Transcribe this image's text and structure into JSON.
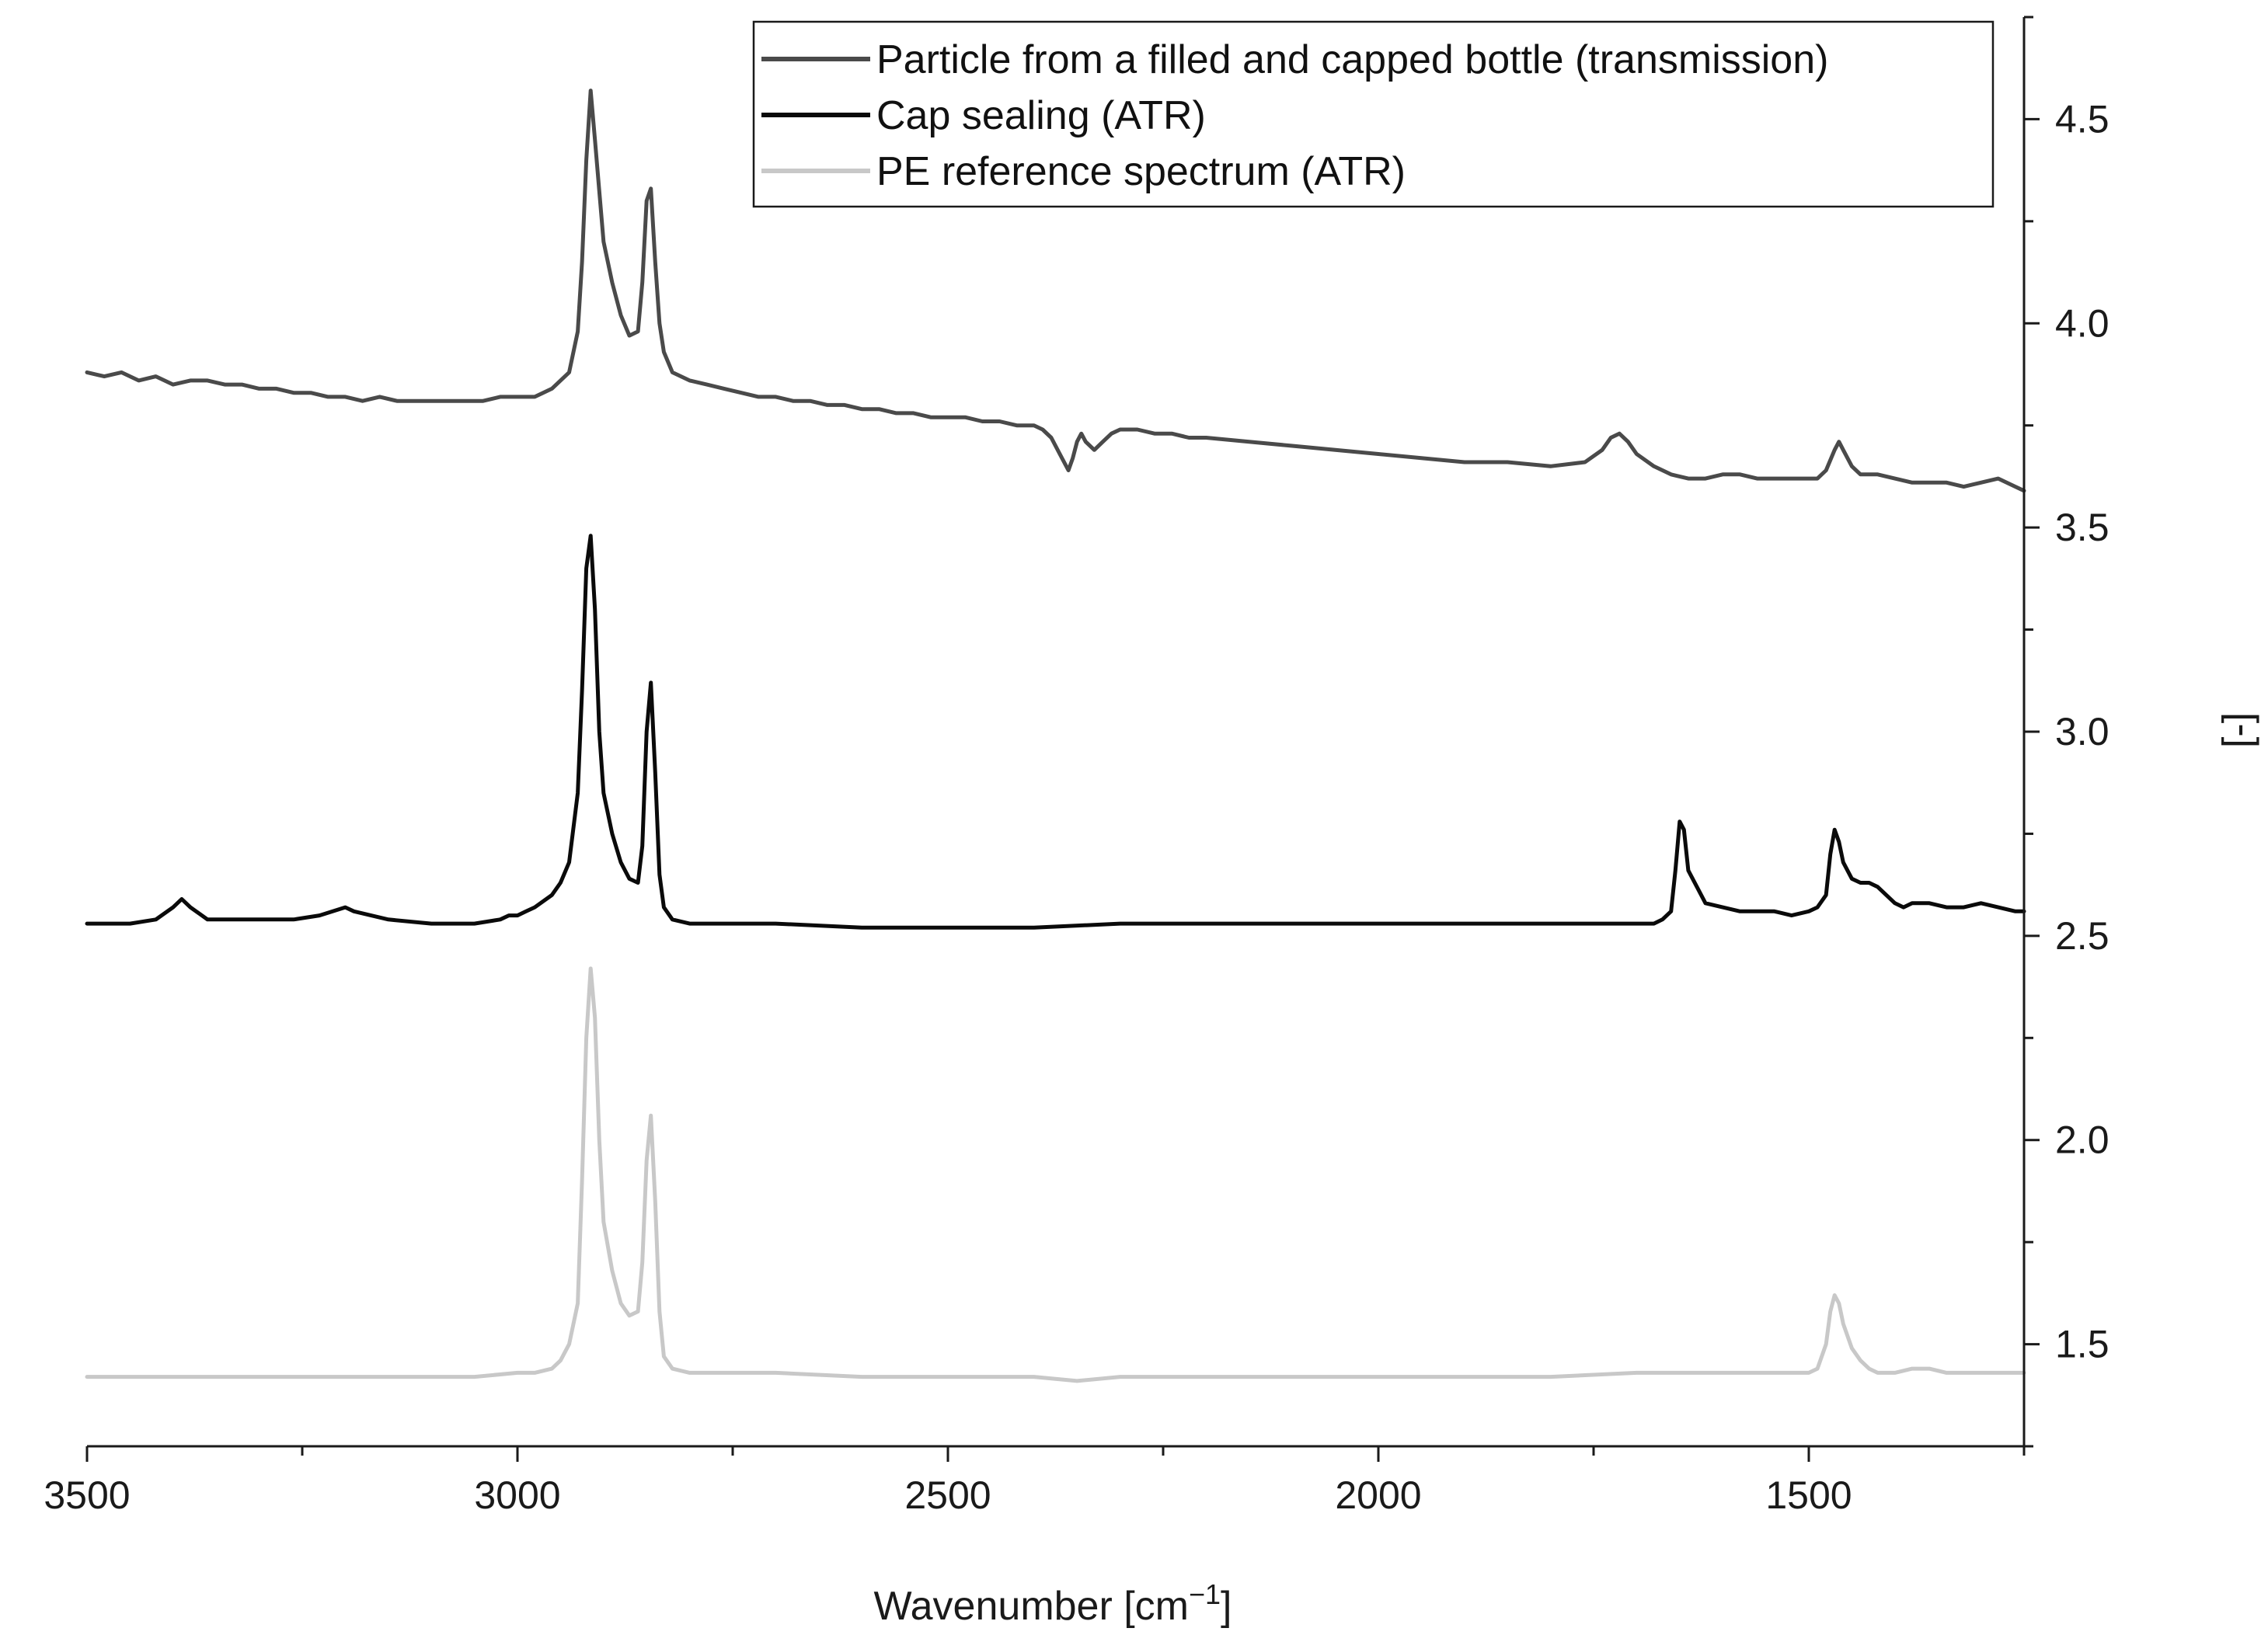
{
  "chart_data": {
    "type": "line",
    "title": "",
    "xlabel": "Wavenumber [cm",
    "xlabel_sup": "−1",
    "xlabel_end": "]",
    "ylabel": "[-]",
    "xlim": [
      3500,
      1250
    ],
    "ylim": [
      1.25,
      4.75
    ],
    "x_ticks": [
      3500,
      3000,
      2500,
      2000,
      1500
    ],
    "x_tick_labels": [
      "3500",
      "3000",
      "2500",
      "2000",
      "1500"
    ],
    "y_ticks": [
      1.5,
      2.0,
      2.5,
      3.0,
      3.5,
      4.0,
      4.5
    ],
    "y_tick_labels": [
      "1.5",
      "2.0",
      "2.5",
      "3.0",
      "3.5",
      "4.0",
      "4.5"
    ],
    "y_axis_side": "right",
    "grid": false,
    "legend_position": "top-right",
    "series": [
      {
        "name": "Particle from a filled and capped bottle (transmission)",
        "color": "#4a4a4a",
        "x": [
          3500,
          3480,
          3460,
          3440,
          3420,
          3400,
          3380,
          3360,
          3340,
          3320,
          3300,
          3280,
          3260,
          3240,
          3220,
          3200,
          3180,
          3160,
          3140,
          3120,
          3100,
          3080,
          3060,
          3040,
          3020,
          3000,
          2980,
          2960,
          2950,
          2940,
          2930,
          2925,
          2920,
          2915,
          2910,
          2900,
          2890,
          2880,
          2870,
          2860,
          2855,
          2850,
          2845,
          2840,
          2835,
          2830,
          2820,
          2800,
          2780,
          2760,
          2740,
          2720,
          2700,
          2680,
          2660,
          2640,
          2620,
          2600,
          2580,
          2560,
          2540,
          2520,
          2500,
          2480,
          2460,
          2440,
          2420,
          2400,
          2390,
          2380,
          2370,
          2360,
          2355,
          2350,
          2345,
          2340,
          2330,
          2320,
          2310,
          2300,
          2280,
          2260,
          2240,
          2220,
          2200,
          2150,
          2100,
          2050,
          2000,
          1950,
          1900,
          1850,
          1800,
          1760,
          1740,
          1730,
          1720,
          1710,
          1700,
          1680,
          1660,
          1640,
          1620,
          1600,
          1580,
          1560,
          1540,
          1520,
          1500,
          1490,
          1480,
          1470,
          1465,
          1460,
          1450,
          1440,
          1420,
          1400,
          1380,
          1360,
          1340,
          1320,
          1300,
          1280,
          1260,
          1250
        ],
        "y": [
          3.88,
          3.87,
          3.88,
          3.86,
          3.87,
          3.85,
          3.86,
          3.86,
          3.85,
          3.85,
          3.84,
          3.84,
          3.83,
          3.83,
          3.82,
          3.82,
          3.81,
          3.82,
          3.81,
          3.81,
          3.81,
          3.81,
          3.81,
          3.81,
          3.82,
          3.82,
          3.82,
          3.84,
          3.86,
          3.88,
          3.98,
          4.15,
          4.4,
          4.57,
          4.45,
          4.2,
          4.1,
          4.02,
          3.97,
          3.98,
          4.1,
          4.3,
          4.33,
          4.15,
          4.0,
          3.93,
          3.88,
          3.86,
          3.85,
          3.84,
          3.83,
          3.82,
          3.82,
          3.81,
          3.81,
          3.8,
          3.8,
          3.79,
          3.79,
          3.78,
          3.78,
          3.77,
          3.77,
          3.77,
          3.76,
          3.76,
          3.75,
          3.75,
          3.74,
          3.72,
          3.68,
          3.64,
          3.67,
          3.71,
          3.73,
          3.71,
          3.69,
          3.71,
          3.73,
          3.74,
          3.74,
          3.73,
          3.73,
          3.72,
          3.72,
          3.71,
          3.7,
          3.69,
          3.68,
          3.67,
          3.66,
          3.66,
          3.65,
          3.66,
          3.69,
          3.72,
          3.73,
          3.71,
          3.68,
          3.65,
          3.63,
          3.62,
          3.62,
          3.63,
          3.63,
          3.62,
          3.62,
          3.62,
          3.62,
          3.62,
          3.64,
          3.69,
          3.71,
          3.69,
          3.65,
          3.63,
          3.63,
          3.62,
          3.61,
          3.61,
          3.61,
          3.6,
          3.61,
          3.62,
          3.6,
          3.59
        ]
      },
      {
        "name": "Cap sealing (ATR)",
        "color": "#0a0a0a",
        "x": [
          3500,
          3450,
          3420,
          3400,
          3390,
          3380,
          3360,
          3340,
          3300,
          3260,
          3230,
          3200,
          3190,
          3170,
          3150,
          3100,
          3050,
          3020,
          3010,
          3000,
          2990,
          2980,
          2960,
          2950,
          2940,
          2930,
          2925,
          2920,
          2915,
          2910,
          2905,
          2900,
          2890,
          2880,
          2870,
          2860,
          2855,
          2850,
          2845,
          2840,
          2835,
          2830,
          2820,
          2800,
          2750,
          2700,
          2600,
          2500,
          2400,
          2300,
          2200,
          2100,
          2000,
          1900,
          1800,
          1700,
          1680,
          1670,
          1660,
          1655,
          1650,
          1645,
          1640,
          1630,
          1620,
          1600,
          1580,
          1560,
          1540,
          1520,
          1500,
          1490,
          1480,
          1475,
          1470,
          1465,
          1460,
          1450,
          1440,
          1430,
          1420,
          1410,
          1400,
          1390,
          1380,
          1360,
          1340,
          1320,
          1300,
          1280,
          1260,
          1250
        ],
        "y": [
          2.53,
          2.53,
          2.54,
          2.57,
          2.59,
          2.57,
          2.54,
          2.54,
          2.54,
          2.54,
          2.55,
          2.57,
          2.56,
          2.55,
          2.54,
          2.53,
          2.53,
          2.54,
          2.55,
          2.55,
          2.56,
          2.57,
          2.6,
          2.63,
          2.68,
          2.85,
          3.1,
          3.4,
          3.48,
          3.3,
          3.0,
          2.85,
          2.75,
          2.68,
          2.64,
          2.63,
          2.72,
          3.0,
          3.12,
          2.9,
          2.65,
          2.57,
          2.54,
          2.53,
          2.53,
          2.53,
          2.52,
          2.52,
          2.52,
          2.53,
          2.53,
          2.53,
          2.53,
          2.53,
          2.53,
          2.53,
          2.53,
          2.54,
          2.56,
          2.66,
          2.78,
          2.76,
          2.66,
          2.62,
          2.58,
          2.57,
          2.56,
          2.56,
          2.56,
          2.55,
          2.56,
          2.57,
          2.6,
          2.7,
          2.76,
          2.73,
          2.68,
          2.64,
          2.63,
          2.63,
          2.62,
          2.6,
          2.58,
          2.57,
          2.58,
          2.58,
          2.57,
          2.57,
          2.58,
          2.57,
          2.56,
          2.56
        ]
      },
      {
        "name": "PE reference spectrum (ATR)",
        "color": "#c8c8c8",
        "x": [
          3500,
          3400,
          3300,
          3200,
          3100,
          3050,
          3000,
          2980,
          2960,
          2950,
          2940,
          2930,
          2925,
          2920,
          2915,
          2910,
          2905,
          2900,
          2890,
          2880,
          2870,
          2860,
          2855,
          2850,
          2845,
          2840,
          2835,
          2830,
          2820,
          2800,
          2700,
          2600,
          2500,
          2400,
          2350,
          2300,
          2200,
          2100,
          2000,
          1900,
          1800,
          1700,
          1600,
          1550,
          1520,
          1500,
          1490,
          1480,
          1475,
          1470,
          1465,
          1460,
          1450,
          1440,
          1430,
          1420,
          1400,
          1380,
          1360,
          1340,
          1320,
          1300,
          1280,
          1260,
          1250
        ],
        "y": [
          1.42,
          1.42,
          1.42,
          1.42,
          1.42,
          1.42,
          1.43,
          1.43,
          1.44,
          1.46,
          1.5,
          1.6,
          1.9,
          2.25,
          2.42,
          2.3,
          2.0,
          1.8,
          1.68,
          1.6,
          1.57,
          1.58,
          1.7,
          1.95,
          2.06,
          1.85,
          1.58,
          1.47,
          1.44,
          1.43,
          1.43,
          1.42,
          1.42,
          1.42,
          1.41,
          1.42,
          1.42,
          1.42,
          1.42,
          1.42,
          1.42,
          1.43,
          1.43,
          1.43,
          1.43,
          1.43,
          1.44,
          1.5,
          1.58,
          1.62,
          1.6,
          1.55,
          1.49,
          1.46,
          1.44,
          1.43,
          1.43,
          1.44,
          1.44,
          1.43,
          1.43,
          1.43,
          1.43,
          1.43,
          1.43
        ]
      }
    ]
  }
}
